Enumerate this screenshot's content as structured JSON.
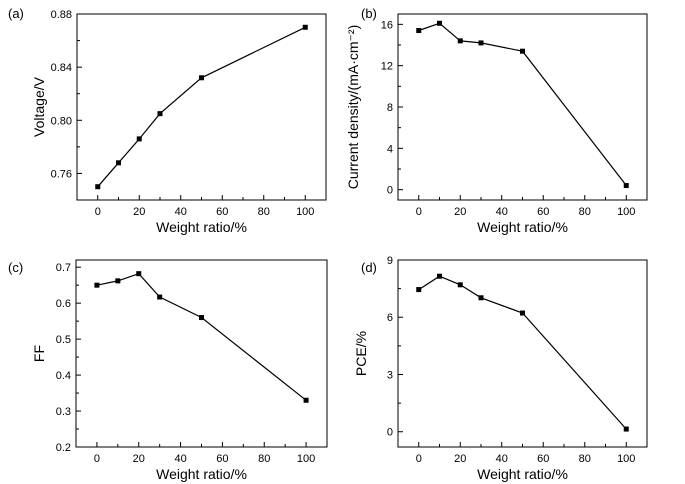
{
  "chart_data": [
    {
      "type": "line",
      "panel_label": "(a)",
      "x": [
        0,
        10,
        20,
        30,
        50,
        100
      ],
      "series": [
        {
          "values": [
            0.75,
            0.768,
            0.786,
            0.805,
            0.832,
            0.87
          ]
        }
      ],
      "xlabel": "Weight ratio/%",
      "ylabel": "Voltage/V",
      "xlim": [
        -10,
        110
      ],
      "ylim": [
        0.74,
        0.88
      ],
      "xticks": [
        0,
        20,
        40,
        60,
        80,
        100
      ],
      "yticks": [
        0.76,
        0.8,
        0.84,
        0.88
      ],
      "ytick_labels": [
        "0.76",
        "0.80",
        "0.84",
        "0.88"
      ],
      "grid": false,
      "marker": "square",
      "color": "#000000"
    },
    {
      "type": "line",
      "panel_label": "(b)",
      "x": [
        0,
        10,
        20,
        30,
        50,
        100
      ],
      "series": [
        {
          "values": [
            15.4,
            16.1,
            14.4,
            14.2,
            13.4,
            0.4
          ]
        }
      ],
      "xlabel": "Weight ratio/%",
      "ylabel": "Current density/(mA·cm⁻²)",
      "xlim": [
        -10,
        110
      ],
      "ylim": [
        -1,
        17
      ],
      "xticks": [
        0,
        20,
        40,
        60,
        80,
        100
      ],
      "yticks": [
        0,
        4,
        8,
        12,
        16
      ],
      "ytick_labels": [
        "0",
        "4",
        "8",
        "12",
        "16"
      ],
      "grid": false,
      "marker": "square",
      "color": "#000000"
    },
    {
      "type": "line",
      "panel_label": "(c)",
      "x": [
        0,
        10,
        20,
        30,
        50,
        100
      ],
      "series": [
        {
          "values": [
            0.65,
            0.662,
            0.682,
            0.617,
            0.56,
            0.33
          ]
        }
      ],
      "xlabel": "Weight ratio/%",
      "ylabel": "FF",
      "xlim": [
        -10,
        110
      ],
      "ylim": [
        0.2,
        0.72
      ],
      "xticks": [
        0,
        20,
        40,
        60,
        80,
        100
      ],
      "yticks": [
        0.2,
        0.3,
        0.4,
        0.5,
        0.6,
        0.7
      ],
      "ytick_labels": [
        "0.2",
        "0.3",
        "0.4",
        "0.5",
        "0.6",
        "0.7"
      ],
      "grid": false,
      "marker": "square",
      "color": "#000000"
    },
    {
      "type": "line",
      "panel_label": "(d)",
      "x": [
        0,
        10,
        20,
        30,
        50,
        100
      ],
      "series": [
        {
          "values": [
            7.45,
            8.15,
            7.7,
            7.02,
            6.22,
            0.14
          ]
        }
      ],
      "xlabel": "Weight ratio/%",
      "ylabel": "PCE/%",
      "xlim": [
        -10,
        110
      ],
      "ylim": [
        -0.8,
        9
      ],
      "xticks": [
        0,
        20,
        40,
        60,
        80,
        100
      ],
      "yticks": [
        0,
        3,
        6,
        9
      ],
      "ytick_labels": [
        "0",
        "3",
        "6",
        "9"
      ],
      "grid": false,
      "marker": "square",
      "color": "#000000"
    }
  ]
}
